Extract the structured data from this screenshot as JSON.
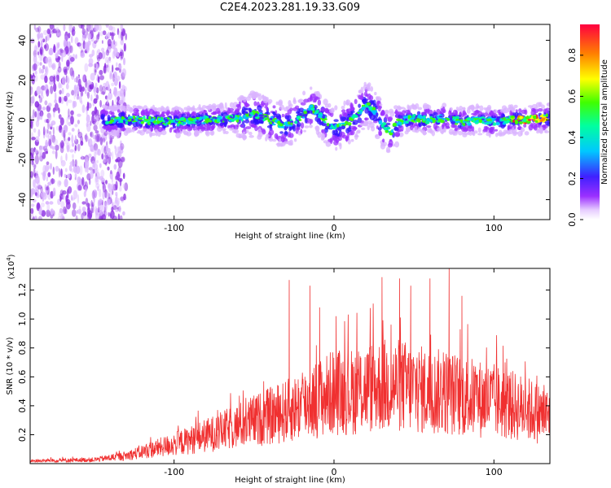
{
  "title": "C2E4.2023.281.19.33.G09",
  "chart_data": [
    {
      "type": "heatmap",
      "xlabel": "Height of straight line (km)",
      "ylabel": "Frequency (Hz)",
      "xlim": [
        -190,
        135
      ],
      "ylim": [
        -50,
        48
      ],
      "xticks": [
        -100,
        0,
        100
      ],
      "yticks": [
        -40,
        -20,
        0,
        20,
        40
      ],
      "colorbar": {
        "label": "Normalized spectral amplitude",
        "range": [
          0.0,
          0.95
        ],
        "ticks": [
          0.0,
          0.2,
          0.4,
          0.6,
          0.8
        ]
      },
      "ridge": {
        "x": [
          -140,
          -120,
          -100,
          -80,
          -60,
          -50,
          -40,
          -30,
          -20,
          -15,
          -10,
          -5,
          0,
          5,
          10,
          15,
          20,
          25,
          30,
          35,
          40,
          50,
          60,
          70,
          80,
          90,
          100,
          110,
          120,
          130
        ],
        "y": [
          0,
          0,
          -1,
          0,
          1,
          3,
          0,
          -3,
          2,
          6,
          4,
          -1,
          -4,
          -3,
          -1,
          3,
          8,
          5,
          -2,
          -6,
          -1,
          1,
          0,
          1,
          -1,
          0,
          -1,
          0,
          0,
          1
        ]
      }
    },
    {
      "type": "line",
      "xlabel": "Height of straight line (km)",
      "ylabel": "SNR (10 * v/v)",
      "multiplier": "(x10",
      "multiplier_exp": "4",
      "xlim": [
        -190,
        135
      ],
      "ylim": [
        0,
        1.35
      ],
      "xticks": [
        -100,
        0,
        100
      ],
      "yticks": [
        0.2,
        0.4,
        0.6,
        0.8,
        1.0,
        1.2
      ],
      "series_color": "#f03030",
      "envelope": {
        "x": [
          -190,
          -150,
          -130,
          -110,
          -90,
          -70,
          -50,
          -30,
          -10,
          0,
          10,
          20,
          30,
          40,
          50,
          60,
          70,
          80,
          90,
          100,
          110,
          120,
          130,
          135
        ],
        "y": [
          0.02,
          0.03,
          0.06,
          0.12,
          0.18,
          0.25,
          0.33,
          0.4,
          0.5,
          0.55,
          0.55,
          0.58,
          0.6,
          0.6,
          0.58,
          0.55,
          0.55,
          0.52,
          0.5,
          0.48,
          0.45,
          0.42,
          0.38,
          0.36
        ]
      },
      "peaks": [
        {
          "x": -28,
          "y": 1.27
        },
        {
          "x": -15,
          "y": 1.23
        },
        {
          "x": -9,
          "y": 1.08
        },
        {
          "x": 30,
          "y": 1.29
        },
        {
          "x": 41,
          "y": 1.28
        },
        {
          "x": 48,
          "y": 1.23
        },
        {
          "x": 60,
          "y": 1.28
        },
        {
          "x": 72,
          "y": 1.35
        },
        {
          "x": 80,
          "y": 1.16
        }
      ]
    }
  ]
}
